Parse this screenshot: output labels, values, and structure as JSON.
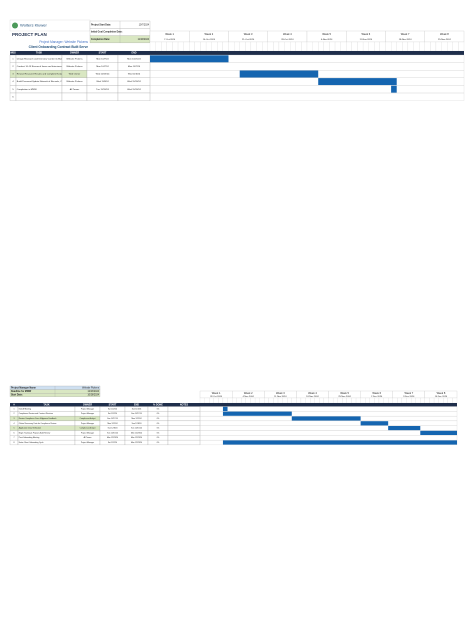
{
  "top": {
    "header": {
      "logo": "Wolters Kluwer",
      "title": "PROJECT PLAN",
      "project_manager": "Project Manager: Website Pickens",
      "client": "Client Onboarding Contract Built Serve"
    },
    "meta": [
      {
        "label": "Project Start Date:",
        "value": "10/7/2024"
      },
      {
        "label": "Initial Goal Completion Date:",
        "value": ""
      },
      {
        "label": "Completion Date:",
        "value": "11/20/2024"
      }
    ],
    "weeks": [
      {
        "label": "Week 1",
        "date": "7-Oct-2024"
      },
      {
        "label": "Week 2",
        "date": "14-Oct-2024"
      },
      {
        "label": "Week 3",
        "date": "21-Oct-2024"
      },
      {
        "label": "Week 4",
        "date": "28-Oct-2024"
      },
      {
        "label": "Week 5",
        "date": "4-Nov-2024"
      },
      {
        "label": "Week 6",
        "date": "11-Nov-2024"
      },
      {
        "label": "Week 7",
        "date": "18-Nov-2024"
      },
      {
        "label": "Week 8",
        "date": "25-Nov-2024"
      }
    ],
    "columns": [
      "WBS",
      "TASK",
      "OWNER",
      "START",
      "END"
    ],
    "tasks": [
      {
        "cells": [
          "1",
          "Design Research and Interview Content & Material",
          "Website Pickens",
          "Mon 10/7/24",
          "Mon 10/21/24"
        ],
        "start": "10/7/24",
        "end": "10/21/24"
      },
      {
        "cells": [
          "2",
          "Conduct 10-15 Research Items and Interviews per Compliance",
          "Website Pickens",
          "Mon 10/7/24",
          "Mon 10/7/24"
        ],
        "start": "10/7/24",
        "end": "10/7/24"
      },
      {
        "cells": [
          "3",
          "Review Research Results and Complete Evaluation",
          "Web Owner",
          "Wed 10/23/24",
          "Wed 11/6/24"
        ],
        "start": "10/23/24",
        "end": "11/6/24"
      },
      {
        "cells": [
          "4",
          "Build Personas/Update Network of Records, CT Register, Setup Record Results",
          "Website Pickens",
          "Wed 11/6/24",
          "Wed 11/20/24"
        ],
        "start": "11/6/24",
        "end": "11/20/24"
      },
      {
        "cells": [
          "5",
          "Completion in MWW",
          "All Teams",
          "Tue 11/19/24",
          "Wed 11/20/24"
        ],
        "start": "11/19/24",
        "end": "11/20/24"
      },
      {
        "cells": [
          "6",
          "",
          "",
          "",
          ""
        ],
        "start": "",
        "end": ""
      }
    ]
  },
  "bottom": {
    "meta": [
      {
        "label": "Project Manager Name",
        "value": "Website Pickens"
      },
      {
        "label": "Deadline for MWW",
        "value": "12/23/2024"
      },
      {
        "label": "Start Date:",
        "value": "10/28/2024"
      }
    ],
    "weeks": [
      {
        "label": "Week 1",
        "date": "28 Oct 2024"
      },
      {
        "label": "Week 2",
        "date": "4 Nov 2024"
      },
      {
        "label": "Week 3",
        "date": "11 Nov 2024"
      },
      {
        "label": "Week 4",
        "date": "18 Nov 2024"
      },
      {
        "label": "Week 5",
        "date": "25 Nov 2024"
      },
      {
        "label": "Week 6",
        "date": "2 Dec 2024"
      },
      {
        "label": "Week 7",
        "date": "9 Dec 2024"
      },
      {
        "label": "Week 8",
        "date": "16 Dec 2024"
      }
    ],
    "columns": [
      "#",
      "TASK",
      "OWNER",
      "START",
      "END",
      "% DONE",
      "NOTES"
    ],
    "tasks": [
      {
        "cells": [
          "1",
          "Kickoff Meeting",
          "Project Manager",
          "Sat 11/2/24",
          "Sun 11/3/24",
          "0%",
          ""
        ],
        "start": "11/2/24",
        "end": "11/3/24"
      },
      {
        "cells": [
          "2",
          "Compliance Review and Contract Revision",
          "Project Manager",
          "Sat 11/2/24",
          "Sun 11/17/24",
          "0%",
          ""
        ],
        "start": "11/2/24",
        "end": "11/17/24"
      },
      {
        "cells": [
          "3",
          "Review Compliance Docs & Approve Feedback",
          "Compliance Analyst",
          "Sun 11/17/24",
          "Mon 12/2/24",
          "0%",
          ""
        ],
        "start": "11/17/24",
        "end": "12/2/24"
      },
      {
        "cells": [
          "4",
          "Obtain Necessary Data for Compliance Review",
          "Project Manager",
          "Mon 12/2/24",
          "Sun 12/8/24",
          "0%",
          ""
        ],
        "start": "12/2/24",
        "end": "12/8/24"
      },
      {
        "cells": [
          "5",
          "Application Data Verification",
          "Compliance Analyst",
          "Sun 12/8/24",
          "Sun 12/15/24",
          "0%",
          ""
        ],
        "start": "12/8/24",
        "end": "12/15/24"
      },
      {
        "cells": [
          "6",
          "Begin Tracking & Prepare Audit Review",
          "Project Manager",
          "Sun 12/15/24",
          "Mon 12/23/24",
          "0%",
          ""
        ],
        "start": "12/15/24",
        "end": "12/23/24"
      },
      {
        "cells": [
          "7",
          "Post-Onboarding Meeting",
          "All Teams",
          "Mon 12/23/24",
          "Mon 12/23/24",
          "0%",
          ""
        ],
        "start": "12/23/24",
        "end": "12/23/24"
      },
      {
        "cells": [
          "8",
          "Entire Client Onboarding Cycle",
          "Project Manager",
          "Sat 11/2/24",
          "Mon 12/23/24",
          "0%",
          ""
        ],
        "start": "11/2/24",
        "end": "12/23/24"
      }
    ]
  }
}
